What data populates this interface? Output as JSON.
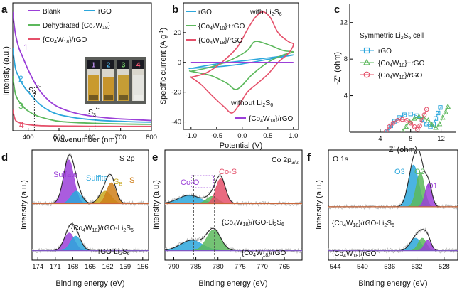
{
  "chart_data": [
    {
      "panel": "a",
      "type": "line",
      "xlabel": "Wavenumber (nm)",
      "ylabel": "Intensity (a.u.)",
      "xlim": [
        350,
        800
      ],
      "xticks": [
        400,
        500,
        600,
        700,
        800
      ],
      "ylim": [
        0,
        1
      ],
      "legend": [
        "Blank",
        "rGO",
        "Dehydrated {Co4W18}",
        "{Co4W18}/rGO"
      ],
      "series": [
        {
          "name": "Blank",
          "label_num": "1",
          "color": "#9b3fd8",
          "x": [
            350,
            355,
            360,
            370,
            380,
            390,
            400,
            420,
            440,
            470,
            500,
            550,
            600,
            650,
            700,
            750,
            800
          ],
          "y": [
            0.96,
            0.84,
            0.76,
            0.66,
            0.6,
            0.54,
            0.48,
            0.38,
            0.3,
            0.22,
            0.17,
            0.125,
            0.1,
            0.085,
            0.075,
            0.068,
            0.062
          ]
        },
        {
          "name": "rGO",
          "label_num": "2",
          "color": "#2ca7dc",
          "x": [
            350,
            355,
            360,
            370,
            380,
            390,
            400,
            420,
            440,
            470,
            500,
            550,
            600,
            650,
            700,
            750,
            800
          ],
          "y": [
            0.66,
            0.55,
            0.48,
            0.42,
            0.37,
            0.33,
            0.3,
            0.24,
            0.19,
            0.14,
            0.11,
            0.085,
            0.07,
            0.06,
            0.055,
            0.05,
            0.048
          ]
        },
        {
          "name": "Dehydrated {Co4W18}",
          "label_num": "3",
          "color": "#5cb85c",
          "x": [
            350,
            355,
            360,
            370,
            380,
            390,
            400,
            420,
            440,
            470,
            500,
            550,
            600,
            650,
            700,
            750,
            800
          ],
          "y": [
            0.43,
            0.33,
            0.27,
            0.22,
            0.19,
            0.16,
            0.14,
            0.11,
            0.09,
            0.07,
            0.055,
            0.045,
            0.04,
            0.036,
            0.033,
            0.031,
            0.03
          ]
        },
        {
          "name": "{Co4W18}/rGO",
          "label_num": "4",
          "color": "#e5506a",
          "x": [
            350,
            355,
            360,
            370,
            380,
            390,
            400,
            420,
            440,
            470,
            500,
            550,
            600,
            650,
            700,
            750,
            800
          ],
          "y": [
            0.15,
            0.09,
            0.06,
            0.045,
            0.038,
            0.032,
            0.028,
            0.022,
            0.019,
            0.017,
            0.016,
            0.015,
            0.014,
            0.014,
            0.013,
            0.013,
            0.013
          ]
        }
      ],
      "annotations": [
        {
          "text": "S4 2−",
          "display": "S₄²⁻",
          "x": 420
        },
        {
          "text": "S3 •−",
          "display": "S₃•⁻",
          "x": 617
        }
      ],
      "vials": [
        {
          "label": "1",
          "label_color": "#b98be8",
          "liquid": "#c99a2e",
          "liquid_level": 0.82
        },
        {
          "label": "2",
          "label_color": "#4fb2e6",
          "liquid": "#c6942c",
          "liquid_level": 0.75
        },
        {
          "label": "3",
          "label_color": "#7bd36d",
          "liquid": "#c59d35",
          "liquid_level": 0.8
        },
        {
          "label": "4",
          "label_color": "#ee5670",
          "liquid": "#e4e4df",
          "liquid_level": 0.8
        }
      ]
    },
    {
      "panel": "b",
      "type": "line",
      "xlabel": "Potential (V)",
      "ylabel": "Specific current (A g⁻¹)",
      "xlim": [
        -1.15,
        1.1
      ],
      "xticks": [
        -1.0,
        -0.5,
        0.0,
        0.5,
        1.0
      ],
      "ylim": [
        -45,
        40
      ],
      "yticks": [
        -40,
        -20,
        0,
        20
      ],
      "legend_top": [
        "rGO",
        "{Co4W18}+rGO",
        "{Co4W18}/rGO"
      ],
      "legend_bottom": [
        "{Co4W18}/rGO"
      ],
      "annotations": [
        "with Li2S6",
        "without Li2S6"
      ],
      "series": [
        {
          "name": "rGO",
          "color": "#2ca7dc",
          "x": [
            -1.0,
            -0.5,
            0.0,
            0.5,
            1.0,
            0.5,
            0.0,
            -0.5,
            -1.0
          ],
          "y": [
            -4,
            -1,
            1,
            3,
            5,
            2,
            -1,
            -3,
            -4
          ]
        },
        {
          "name": "{Co4W18}+rGO",
          "color": "#5cb85c",
          "x": [
            -1.0,
            -0.6,
            -0.2,
            0.1,
            0.25,
            0.5,
            0.8,
            1.0,
            0.8,
            0.5,
            0.2,
            -0.1,
            -0.3,
            -0.6,
            -1.0
          ],
          "y": [
            -6,
            -3,
            2,
            8,
            14,
            12,
            8,
            7,
            5,
            0,
            -8,
            -18,
            -14,
            -9,
            -6
          ]
        },
        {
          "name": "{Co4W18}/rGO",
          "color": "#e5506a",
          "x": [
            -1.0,
            -0.7,
            -0.4,
            -0.1,
            0.1,
            0.25,
            0.4,
            0.55,
            0.7,
            0.9,
            1.0,
            0.9,
            0.7,
            0.5,
            0.3,
            0.1,
            -0.05,
            -0.2,
            -0.35,
            -0.6,
            -0.8,
            -1.0
          ],
          "y": [
            -10,
            -7,
            0,
            10,
            22,
            30,
            34,
            30,
            20,
            14,
            12,
            6,
            0,
            -8,
            -14,
            -20,
            -28,
            -34,
            -30,
            -22,
            -15,
            -10
          ]
        },
        {
          "name": "{Co4W18}/rGO without Li2S6",
          "color": "#9b3fd8",
          "x": [
            -1.0,
            1.0
          ],
          "y": [
            0,
            0
          ]
        }
      ]
    },
    {
      "panel": "c",
      "type": "scatter",
      "title": "Symmetric Li2S6 cell",
      "xlabel": "Z′ (ohm)",
      "ylabel": "-Z″ (ohm)",
      "xlim": [
        0,
        14
      ],
      "xticks": [
        4,
        8,
        12
      ],
      "ylim": [
        0,
        14
      ],
      "yticks": [
        4,
        8,
        12
      ],
      "legend": [
        "rGO",
        "{Co4W18}+rGO",
        "{Co4W18}/rGO"
      ],
      "series": [
        {
          "name": "rGO",
          "color": "#2ca7dc",
          "marker": "square",
          "x": [
            5.0,
            5.4,
            5.9,
            6.5,
            7.2,
            8.0,
            8.8,
            9.5,
            10.1,
            10.6,
            11.0,
            11.3,
            11.6,
            11.9
          ],
          "y": [
            0.1,
            0.7,
            1.2,
            1.6,
            1.9,
            2.0,
            1.8,
            1.4,
            0.9,
            0.6,
            0.9,
            1.5,
            2.1,
            2.7
          ]
        },
        {
          "name": "{Co4W18}+rGO",
          "color": "#5cb85c",
          "marker": "triangle",
          "x": [
            7.0,
            7.4,
            7.9,
            8.5,
            9.1,
            9.7,
            10.3,
            10.8,
            11.3,
            11.8,
            12.2,
            12.6,
            12.9
          ],
          "y": [
            0.1,
            0.6,
            1.1,
            1.5,
            1.7,
            1.6,
            1.3,
            0.8,
            0.5,
            0.9,
            1.6,
            2.2,
            2.8
          ]
        },
        {
          "name": "{Co4W18}/rGO",
          "color": "#e5506a",
          "marker": "circle",
          "x": [
            4.8,
            5.2,
            5.7,
            6.3,
            6.9,
            7.5,
            8.0,
            8.5,
            8.9,
            9.2,
            9.5,
            9.8,
            10.1
          ],
          "y": [
            0.1,
            0.6,
            1.0,
            1.3,
            1.4,
            1.3,
            1.0,
            0.6,
            0.3,
            0.7,
            1.3,
            1.9,
            2.5
          ]
        }
      ]
    },
    {
      "panel": "d",
      "type": "line",
      "title": "S 2p",
      "xlabel": "Binding energy (eV)",
      "ylabel": "Intensity (a.u.)",
      "xlim": [
        175,
        155
      ],
      "xticks": [
        174,
        171,
        168,
        165,
        162,
        159,
        156
      ],
      "peak_labels": [
        {
          "text": "Sulfate",
          "color": "#9b3fd8",
          "x": 169.6
        },
        {
          "text": "Sulfite",
          "color": "#2ca7dc",
          "x": 167.7
        },
        {
          "text": "SB",
          "display": "S_B",
          "color": "#c8a820",
          "x": 162.9
        },
        {
          "text": "ST",
          "display": "S_T",
          "color": "#cf7f1a",
          "x": 161.3
        }
      ],
      "spectra": [
        {
          "name": "{Co4W18}/rGO-Li2S6",
          "offset": 0.45,
          "components": [
            {
              "label": "Sulfate",
              "center": 168.7,
              "width": 0.9,
              "height": 0.42,
              "color": "#9b3fd8"
            },
            {
              "label": "Sulfite",
              "center": 167.4,
              "width": 0.9,
              "height": 0.12,
              "color": "#2ca7dc"
            },
            {
              "label": "SB",
              "center": 162.4,
              "width": 1.0,
              "height": 0.12,
              "color": "#c8a820"
            },
            {
              "label": "ST",
              "center": 161.4,
              "width": 0.8,
              "height": 0.2,
              "color": "#cf7f1a"
            }
          ]
        },
        {
          "name": "rGO-Li2S6",
          "offset": 0.0,
          "components": [
            {
              "label": "Sulfate",
              "center": 168.6,
              "width": 0.9,
              "height": 0.17,
              "color": "#9b3fd8"
            },
            {
              "label": "Sulfite",
              "center": 167.5,
              "width": 0.9,
              "height": 0.14,
              "color": "#2ca7dc"
            }
          ]
        }
      ]
    },
    {
      "panel": "e",
      "type": "line",
      "title": "Co 2p3/2",
      "xlabel": "Binding energy (eV)",
      "ylabel": "Intensity (a.u.)",
      "xlim": [
        792,
        761
      ],
      "xticks": [
        790,
        785,
        780,
        775,
        770,
        765
      ],
      "peak_labels": [
        {
          "text": "Co-O",
          "color": "#9b3fd8",
          "x": 784.5
        },
        {
          "text": "Co-S",
          "color": "#e5506a",
          "x": 779.2
        }
      ],
      "spectra": [
        {
          "name": "{Co4W18}/rGO-Li2S6",
          "offset": 0.45,
          "components": [
            {
              "label": "satellite",
              "center": 786.5,
              "width": 2.5,
              "height": 0.08,
              "color": "#2ca7dc"
            },
            {
              "label": "Co-O",
              "center": 781.3,
              "width": 1.3,
              "height": 0.07,
              "color": "#5cb85c"
            },
            {
              "label": "Co-S",
              "center": 779.4,
              "width": 1.1,
              "height": 0.24,
              "color": "#e5506a"
            }
          ]
        },
        {
          "name": "{Co4W18}/rGO",
          "offset": 0.0,
          "components": [
            {
              "label": "satellite",
              "center": 786.0,
              "width": 2.5,
              "height": 0.1,
              "color": "#2ca7dc"
            },
            {
              "label": "Co 2p3/2",
              "center": 781.0,
              "width": 1.6,
              "height": 0.2,
              "color": "#5cb85c"
            }
          ]
        }
      ]
    },
    {
      "panel": "f",
      "type": "line",
      "title": "O 1s",
      "xlabel": "Binding energy (eV)",
      "ylabel": "Intensity (a.u.)",
      "xlim": [
        545,
        526
      ],
      "xticks": [
        544,
        540,
        536,
        532,
        528
      ],
      "peak_labels": [
        {
          "text": "O3",
          "color": "#2ca7dc",
          "x": 532.6
        },
        {
          "text": "O2",
          "color": "#5cb85c",
          "x": 531.4
        },
        {
          "text": "O1",
          "color": "#9b3fd8",
          "x": 530.0
        }
      ],
      "spectra": [
        {
          "name": "{Co4W18}/rGO-Li2S6",
          "offset": 0.42,
          "components": [
            {
              "label": "O3",
              "center": 532.5,
              "width": 0.75,
              "height": 0.4,
              "color": "#2ca7dc"
            },
            {
              "label": "O2",
              "center": 531.5,
              "width": 0.6,
              "height": 0.33,
              "color": "#5cb85c"
            },
            {
              "label": "O1",
              "center": 530.3,
              "width": 0.5,
              "height": 0.22,
              "color": "#9b3fd8"
            }
          ]
        },
        {
          "name": "{Co4W18}/rGO",
          "offset": 0.0,
          "components": [
            {
              "label": "O3",
              "center": 532.2,
              "width": 0.8,
              "height": 0.12,
              "color": "#2ca7dc"
            },
            {
              "label": "O2",
              "center": 531.2,
              "width": 0.6,
              "height": 0.12,
              "color": "#5cb85c"
            },
            {
              "label": "O1",
              "center": 530.4,
              "width": 0.5,
              "height": 0.1,
              "color": "#9b3fd8"
            }
          ]
        }
      ]
    }
  ],
  "text": {
    "panel_a": "a",
    "panel_b": "b",
    "panel_c": "c",
    "panel_d": "d",
    "panel_e": "e",
    "panel_f": "f",
    "a_xlabel": "Wavenumber (nm)",
    "a_ylabel": "Intensity (a.u.)",
    "a_legend_1": "Blank",
    "a_legend_2": "rGO",
    "a_legend_3": "Dehydrated {Co",
    "a_legend_3_sub": "4",
    "a_legend_3_mid": "W",
    "a_legend_3_sub2": "18",
    "a_legend_3_end": "}",
    "a_legend_4": "{Co",
    "a_legend_4_sub": "4",
    "a_legend_4_mid": "W",
    "a_legend_4_sub2": "18",
    "a_legend_4_end": "}/rGO",
    "a_s4": "S",
    "a_s4_sub": "4",
    "a_s4_sup": "2-",
    "a_s3": "S",
    "a_s3_sub": "3",
    "a_s3_sup": "•-",
    "b_xlabel": "Potential (V)",
    "b_ylabel": "Specific current (A g",
    "b_ylabel_sup": "-1",
    "b_ylabel_end": ")",
    "b_legend_1": "rGO",
    "b_legend_2": "{Co",
    "b_legend_2_end": "}+rGO",
    "b_legend_3": "{Co",
    "b_legend_3_end": "}/rGO",
    "b_with": "with Li",
    "b_without": "without Li",
    "b_legend_4": "{Co",
    "b_legend_4_end": "}/rGO",
    "sub_2": "2",
    "sub_4": "4",
    "sub_6": "6",
    "sub_18": "18",
    "w": "W",
    "s": "S",
    "c_title": "Symmetric Li",
    "c_title_end": " cell",
    "c_xlabel": "Z′ (ohm)",
    "c_ylabel": "-Z″ (ohm)",
    "c_legend_1": "rGO",
    "c_legend_2": "{Co",
    "c_legend_2_end": "}+rGO",
    "c_legend_3": "{Co",
    "c_legend_3_end": "}/rGO",
    "d_title": "S 2p",
    "d_sulfate": "Sulfate",
    "d_sulfite": "Sulfite",
    "d_sb": "S",
    "d_sb_sub": "B",
    "d_st": "S",
    "d_st_sub": "T",
    "d_spec1": "{Co",
    "d_spec1_end": "}/rGO-Li",
    "d_spec2": "rGO-Li",
    "e_title": "Co 2p",
    "e_title_sub": "3/2",
    "e_coo": "Co-O",
    "e_cos": "Co-S",
    "e_spec1": "{Co",
    "e_spec1_end": "}/rGO-Li",
    "e_spec2": "{Co",
    "e_spec2_end": "}/rGO",
    "f_title": "O 1s",
    "f_o3": "O3",
    "f_o2": "O2",
    "f_o1": "O1",
    "f_spec1": "{Co",
    "f_spec1_end": "}/rGO-Li",
    "f_spec2": "{Co",
    "f_spec2_end": "}/rGO",
    "be_label": "Binding energy (eV)",
    "int_label": "Intensity (a.u.)",
    "vial_1": "1",
    "vial_2": "2",
    "vial_3": "3",
    "vial_4": "4"
  }
}
